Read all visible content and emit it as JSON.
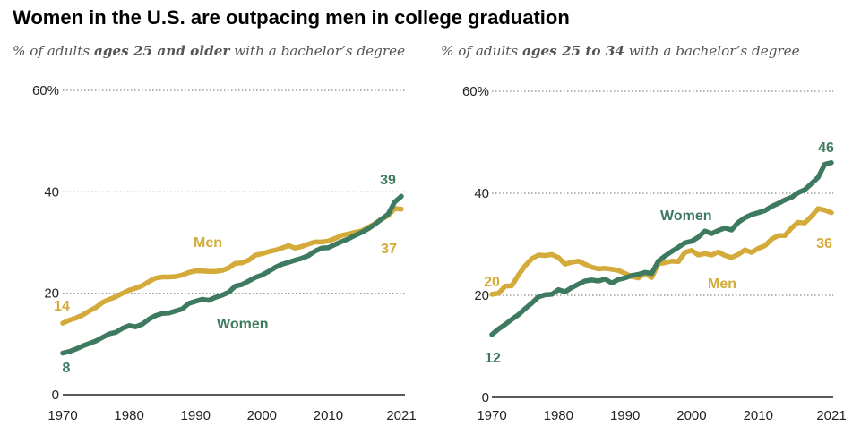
{
  "header": {
    "title": "Women in the U.S. are outpacing men in college graduation"
  },
  "colors": {
    "women": "#3d7a5f",
    "men": "#d4aa3a"
  },
  "chart_data": [
    {
      "type": "line",
      "subtitle": {
        "prefix": "% of adults ",
        "bold": "ages 25 and older",
        "suffix": " with a bachelor’s degree"
      },
      "ylim": [
        0,
        60
      ],
      "yticks": [
        0,
        20,
        40,
        60
      ],
      "ytick_labels": [
        "0",
        "20",
        "40",
        "60%"
      ],
      "xticks": [
        1970,
        1980,
        1990,
        2000,
        2010,
        2021
      ],
      "xtick_labels": [
        "1970",
        "1980",
        "1990",
        "2000",
        "2010",
        "2021"
      ],
      "x": [
        1970,
        1971,
        1972,
        1973,
        1974,
        1975,
        1976,
        1977,
        1978,
        1979,
        1980,
        1981,
        1982,
        1983,
        1984,
        1985,
        1986,
        1987,
        1988,
        1989,
        1990,
        1991,
        1992,
        1993,
        1994,
        1995,
        1996,
        1997,
        1998,
        1999,
        2000,
        2001,
        2002,
        2003,
        2004,
        2005,
        2006,
        2007,
        2008,
        2009,
        2010,
        2011,
        2012,
        2013,
        2014,
        2015,
        2016,
        2017,
        2018,
        2019,
        2020,
        2021
      ],
      "series": [
        {
          "name": "Men",
          "values": [
            14.1,
            14.7,
            15.1,
            15.7,
            16.5,
            17.2,
            18.2,
            18.8,
            19.3,
            20.0,
            20.6,
            21.0,
            21.5,
            22.3,
            23.0,
            23.2,
            23.2,
            23.3,
            23.6,
            24.1,
            24.4,
            24.4,
            24.3,
            24.3,
            24.5,
            25.0,
            25.9,
            26.0,
            26.5,
            27.5,
            27.8,
            28.2,
            28.5,
            28.9,
            29.4,
            28.9,
            29.2,
            29.7,
            30.1,
            30.1,
            30.3,
            30.8,
            31.4,
            31.7,
            32.0,
            32.3,
            33.0,
            33.7,
            34.6,
            35.3,
            36.7,
            36.6
          ],
          "start_label": "14",
          "end_label": "37",
          "legend_label": "Men"
        },
        {
          "name": "Women",
          "values": [
            8.2,
            8.5,
            9.0,
            9.6,
            10.1,
            10.6,
            11.3,
            12.0,
            12.3,
            13.1,
            13.6,
            13.4,
            13.9,
            14.9,
            15.6,
            16.0,
            16.1,
            16.5,
            16.9,
            18.0,
            18.4,
            18.8,
            18.6,
            19.2,
            19.6,
            20.2,
            21.4,
            21.7,
            22.4,
            23.1,
            23.6,
            24.3,
            25.1,
            25.7,
            26.1,
            26.5,
            26.9,
            27.4,
            28.3,
            28.9,
            29.0,
            29.6,
            30.2,
            30.7,
            31.4,
            32.0,
            32.7,
            33.6,
            34.6,
            35.6,
            38.0,
            39.1
          ],
          "start_label": "8",
          "end_label": "39",
          "legend_label": "Women"
        }
      ]
    },
    {
      "type": "line",
      "subtitle": {
        "prefix": "% of adults ",
        "bold": "ages 25 to 34",
        "suffix": " with a bachelor’s degree"
      },
      "ylim": [
        0,
        60
      ],
      "yticks": [
        0,
        20,
        40,
        60
      ],
      "ytick_labels": [
        "0",
        "20",
        "40",
        "60%"
      ],
      "xticks": [
        1970,
        1980,
        1990,
        2000,
        2010,
        2021
      ],
      "xtick_labels": [
        "1970",
        "1980",
        "1990",
        "2000",
        "2010",
        "2021"
      ],
      "x": [
        1970,
        1971,
        1972,
        1973,
        1974,
        1975,
        1976,
        1977,
        1978,
        1979,
        1980,
        1981,
        1982,
        1983,
        1984,
        1985,
        1986,
        1987,
        1988,
        1989,
        1990,
        1991,
        1992,
        1993,
        1994,
        1995,
        1996,
        1997,
        1998,
        1999,
        2000,
        2001,
        2002,
        2003,
        2004,
        2005,
        2006,
        2007,
        2008,
        2009,
        2010,
        2011,
        2012,
        2013,
        2014,
        2015,
        2016,
        2017,
        2018,
        2019,
        2020,
        2021
      ],
      "series": [
        {
          "name": "Men",
          "values": [
            20.2,
            20.4,
            21.8,
            21.9,
            24.0,
            25.8,
            27.2,
            27.9,
            27.8,
            28.0,
            27.4,
            26.1,
            26.5,
            26.7,
            26.1,
            25.5,
            25.2,
            25.3,
            25.1,
            24.9,
            24.3,
            23.7,
            23.4,
            24.3,
            23.5,
            26.2,
            26.4,
            26.7,
            26.6,
            28.4,
            28.8,
            27.9,
            28.2,
            27.9,
            28.5,
            27.8,
            27.4,
            28.0,
            28.9,
            28.4,
            29.2,
            29.7,
            31.0,
            31.7,
            31.7,
            33.2,
            34.3,
            34.2,
            35.5,
            37.0,
            36.7,
            36.2
          ],
          "start_label": "20",
          "end_label": "36",
          "legend_label": "Men"
        },
        {
          "name": "Women",
          "values": [
            12.3,
            13.4,
            14.3,
            15.3,
            16.2,
            17.4,
            18.5,
            19.7,
            20.1,
            20.2,
            21.1,
            20.7,
            21.5,
            22.2,
            22.8,
            23.0,
            22.8,
            23.2,
            22.4,
            23.1,
            23.4,
            23.9,
            24.1,
            24.5,
            24.3,
            26.7,
            27.7,
            28.6,
            29.4,
            30.3,
            30.6,
            31.4,
            32.6,
            32.1,
            32.7,
            33.2,
            32.8,
            34.3,
            35.2,
            35.8,
            36.2,
            36.6,
            37.4,
            38.0,
            38.7,
            39.2,
            40.1,
            40.7,
            41.9,
            43.1,
            45.7,
            46.0
          ],
          "start_label": "12",
          "end_label": "46",
          "legend_label": "Women"
        }
      ]
    }
  ]
}
